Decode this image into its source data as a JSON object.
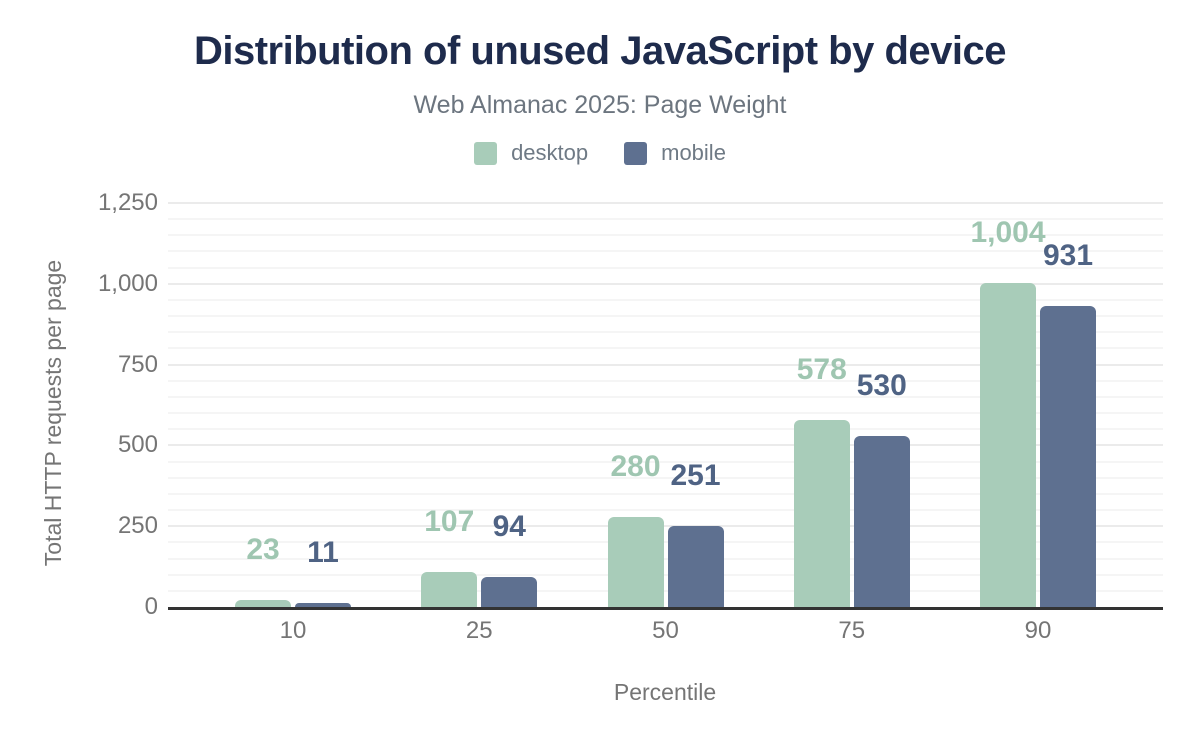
{
  "title": "Distribution of unused JavaScript by device",
  "subtitle": "Web Almanac 2025: Page Weight",
  "legend": {
    "items": [
      {
        "label": "desktop",
        "color": "#a8ccb9"
      },
      {
        "label": "mobile",
        "color": "#5e7090"
      }
    ]
  },
  "colors": {
    "title": "#1e2b4c",
    "subtitle_gray": "#6c757f",
    "tick_gray": "#757575",
    "axis_line": "#333333",
    "desktop_bar": "#a8ccb9",
    "desktop_label": "#9fc6b1",
    "mobile_bar": "#5e7090",
    "mobile_label": "#4f6384"
  },
  "chart_data": {
    "type": "bar",
    "title": "Distribution of unused JavaScript by device",
    "subtitle": "Web Almanac 2025: Page Weight",
    "categories": [
      "10",
      "25",
      "50",
      "75",
      "90"
    ],
    "series": [
      {
        "name": "desktop",
        "color": "#a8ccb9",
        "label_color": "#9fc6b1",
        "values": [
          23,
          107,
          280,
          578,
          1004
        ],
        "value_labels": [
          "23",
          "107",
          "280",
          "578",
          "1,004"
        ]
      },
      {
        "name": "mobile",
        "color": "#5e7090",
        "label_color": "#4f6384",
        "values": [
          11,
          94,
          251,
          530,
          931
        ],
        "value_labels": [
          "11",
          "94",
          "251",
          "530",
          "931"
        ]
      }
    ],
    "xlabel": "Percentile",
    "ylabel": "Total HTTP requests per page",
    "ylim": [
      0,
      1250
    ],
    "yticks": [
      0,
      250,
      500,
      750,
      1000,
      1250
    ],
    "ytick_labels": [
      "0",
      "250",
      "500",
      "750",
      "1,000",
      "1,250"
    ],
    "minor_grid_step": 50,
    "grid": "horizontal",
    "legend_position": "top",
    "bar_corner_radius": "rounded-top"
  }
}
